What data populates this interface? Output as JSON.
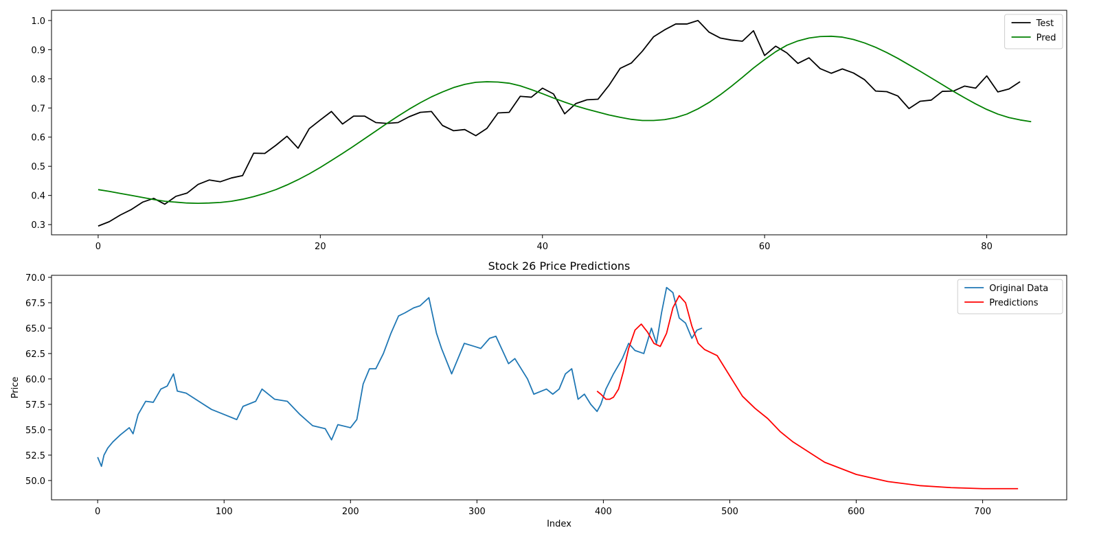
{
  "chart_data": [
    {
      "type": "line",
      "title": "",
      "xlabel": "",
      "ylabel": "",
      "xlim": [
        -4.2,
        87.2
      ],
      "ylim": [
        0.265,
        1.035
      ],
      "xticks": [
        0,
        20,
        40,
        60,
        80
      ],
      "yticks": [
        0.3,
        0.4,
        0.5,
        0.6,
        0.7,
        0.8,
        0.9,
        1.0
      ],
      "legend_position": "top-right",
      "series": [
        {
          "name": "Test",
          "color": "#000000",
          "x_start": 0,
          "values": [
            0.295,
            0.31,
            0.333,
            0.352,
            0.377,
            0.39,
            0.37,
            0.397,
            0.408,
            0.438,
            0.453,
            0.447,
            0.46,
            0.468,
            0.545,
            0.544,
            0.572,
            0.603,
            0.562,
            0.629,
            0.659,
            0.688,
            0.645,
            0.672,
            0.672,
            0.65,
            0.647,
            0.65,
            0.67,
            0.685,
            0.688,
            0.64,
            0.622,
            0.626,
            0.605,
            0.63,
            0.683,
            0.685,
            0.74,
            0.737,
            0.768,
            0.748,
            0.68,
            0.715,
            0.728,
            0.73,
            0.778,
            0.836,
            0.854,
            0.895,
            0.944,
            0.968,
            0.988,
            0.988,
            1.0,
            0.96,
            0.94,
            0.933,
            0.929,
            0.965,
            0.88,
            0.912,
            0.889,
            0.853,
            0.872,
            0.835,
            0.819,
            0.834,
            0.82,
            0.797,
            0.758,
            0.756,
            0.741,
            0.698,
            0.723,
            0.727,
            0.757,
            0.758,
            0.775,
            0.768,
            0.81,
            0.755,
            0.765,
            0.79
          ]
        },
        {
          "name": "Pred",
          "color": "#008000",
          "x_start": 0,
          "values": [
            0.42,
            0.414,
            0.407,
            0.4,
            0.393,
            0.386,
            0.38,
            0.377,
            0.374,
            0.373,
            0.374,
            0.376,
            0.38,
            0.387,
            0.396,
            0.407,
            0.42,
            0.436,
            0.454,
            0.474,
            0.496,
            0.52,
            0.544,
            0.569,
            0.595,
            0.621,
            0.647,
            0.672,
            0.696,
            0.718,
            0.738,
            0.755,
            0.77,
            0.781,
            0.788,
            0.79,
            0.789,
            0.785,
            0.776,
            0.763,
            0.749,
            0.734,
            0.72,
            0.707,
            0.696,
            0.686,
            0.676,
            0.668,
            0.661,
            0.657,
            0.657,
            0.66,
            0.667,
            0.679,
            0.697,
            0.719,
            0.745,
            0.774,
            0.805,
            0.837,
            0.866,
            0.893,
            0.915,
            0.93,
            0.94,
            0.945,
            0.946,
            0.943,
            0.935,
            0.923,
            0.908,
            0.89,
            0.87,
            0.848,
            0.826,
            0.803,
            0.78,
            0.757,
            0.735,
            0.714,
            0.695,
            0.679,
            0.667,
            0.659,
            0.653
          ]
        }
      ]
    },
    {
      "type": "line",
      "title": "Stock 26 Price Predictions",
      "xlabel": "Index",
      "ylabel": "Price",
      "xlim": [
        -36.5,
        766.5
      ],
      "ylim": [
        48.1,
        70.2
      ],
      "xticks": [
        0,
        100,
        200,
        300,
        400,
        500,
        600,
        700
      ],
      "yticks": [
        50.0,
        52.5,
        55.0,
        57.5,
        60.0,
        62.5,
        65.0,
        67.5,
        70.0
      ],
      "ytick_labels": [
        "50.0",
        "52.5",
        "55.0",
        "57.5",
        "60.0",
        "62.5",
        "65.0",
        "67.5",
        "70.0"
      ],
      "legend_position": "top-right",
      "series": [
        {
          "name": "Original Data",
          "color": "#1f77b4",
          "x": [
            0,
            3,
            5,
            8,
            12,
            18,
            25,
            28,
            32,
            38,
            44,
            50,
            55,
            60,
            63,
            70,
            80,
            90,
            100,
            110,
            115,
            125,
            130,
            140,
            150,
            160,
            170,
            180,
            185,
            190,
            200,
            205,
            210,
            215,
            220,
            226,
            232,
            238,
            243,
            250,
            255,
            262,
            268,
            272,
            280,
            285,
            290,
            298,
            303,
            310,
            315,
            325,
            330,
            340,
            345,
            355,
            360,
            365,
            370,
            375,
            380,
            385,
            390,
            395,
            398,
            402,
            408,
            415,
            420,
            425,
            432,
            438,
            442,
            446,
            450,
            455,
            460,
            465,
            470,
            474,
            478
          ],
          "values": [
            52.3,
            51.4,
            52.5,
            53.2,
            53.8,
            54.5,
            55.2,
            54.6,
            56.5,
            57.8,
            57.7,
            59.0,
            59.3,
            60.5,
            58.8,
            58.6,
            57.8,
            57.0,
            56.5,
            56.0,
            57.3,
            57.8,
            59.0,
            58.0,
            57.8,
            56.5,
            55.4,
            55.1,
            54.0,
            55.5,
            55.2,
            56.0,
            59.5,
            61.0,
            61.0,
            62.5,
            64.5,
            66.2,
            66.5,
            67.0,
            67.2,
            68.0,
            64.5,
            63.0,
            60.5,
            62.0,
            63.5,
            63.2,
            63.0,
            64.0,
            64.2,
            61.5,
            62.0,
            60.0,
            58.5,
            59.0,
            58.5,
            59.0,
            60.5,
            61.0,
            58.0,
            58.5,
            57.5,
            56.8,
            57.5,
            59.0,
            60.5,
            62.0,
            63.5,
            62.8,
            62.5,
            65.0,
            63.5,
            66.5,
            69.0,
            68.5,
            66.0,
            65.5,
            64.0,
            64.8,
            65.0
          ]
        },
        {
          "name": "Predictions",
          "color": "#ff0000",
          "x": [
            395,
            398,
            402,
            405,
            408,
            412,
            416,
            420,
            425,
            430,
            435,
            440,
            445,
            450,
            455,
            460,
            465,
            470,
            475,
            480,
            490,
            500,
            510,
            520,
            530,
            540,
            550,
            575,
            600,
            625,
            650,
            675,
            700,
            728
          ],
          "values": [
            58.8,
            58.5,
            58.0,
            58.0,
            58.2,
            59.0,
            60.8,
            63.0,
            64.8,
            65.4,
            64.6,
            63.5,
            63.2,
            64.5,
            67.0,
            68.2,
            67.5,
            65.2,
            63.5,
            62.9,
            62.3,
            60.3,
            58.3,
            57.1,
            56.1,
            54.8,
            53.8,
            51.8,
            50.6,
            49.9,
            49.5,
            49.3,
            49.2,
            49.2
          ]
        }
      ]
    }
  ]
}
